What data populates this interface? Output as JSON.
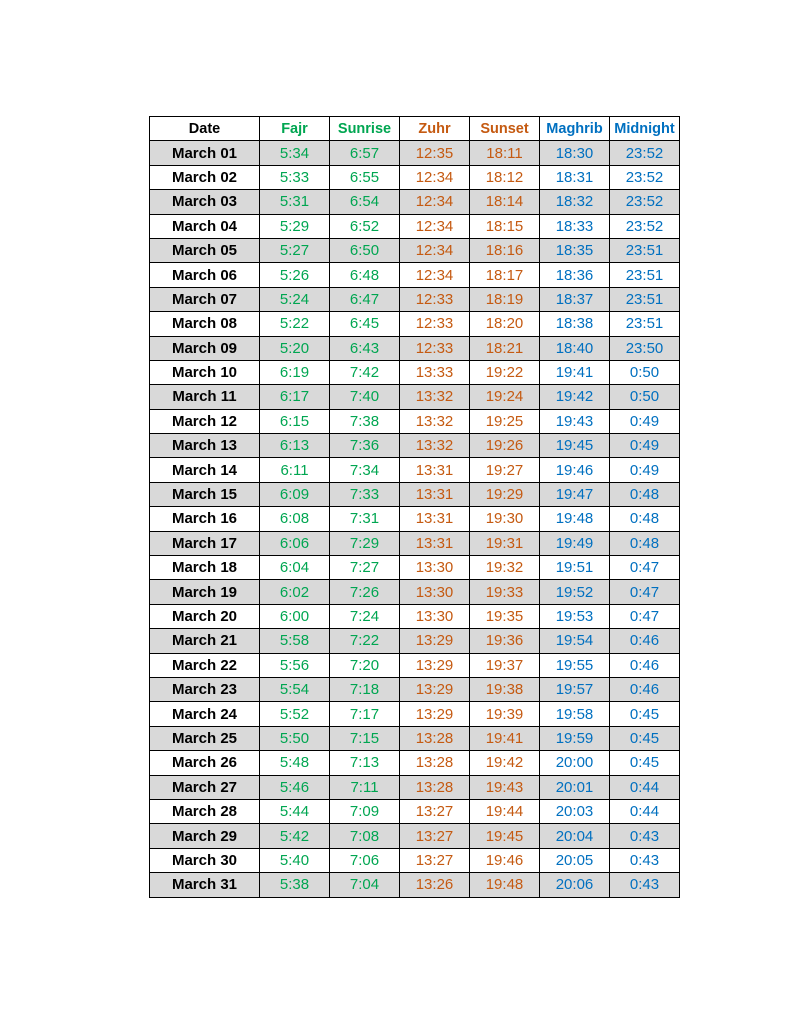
{
  "headers": {
    "date": "Date",
    "fajr": "Fajr",
    "sunrise": "Sunrise",
    "zuhr": "Zuhr",
    "sunset": "Sunset",
    "maghrib": "Maghrib",
    "midnight": "Midnight"
  },
  "colors": {
    "green": "#00a651",
    "orange": "#c55a11",
    "blue": "#0070c0",
    "row_shade": "#d9d9d9"
  },
  "rows": [
    {
      "date": "March 01",
      "fajr": "5:34",
      "sunrise": "6:57",
      "zuhr": "12:35",
      "sunset": "18:11",
      "maghrib": "18:30",
      "midnight": "23:52"
    },
    {
      "date": "March 02",
      "fajr": "5:33",
      "sunrise": "6:55",
      "zuhr": "12:34",
      "sunset": "18:12",
      "maghrib": "18:31",
      "midnight": "23:52"
    },
    {
      "date": "March 03",
      "fajr": "5:31",
      "sunrise": "6:54",
      "zuhr": "12:34",
      "sunset": "18:14",
      "maghrib": "18:32",
      "midnight": "23:52"
    },
    {
      "date": "March 04",
      "fajr": "5:29",
      "sunrise": "6:52",
      "zuhr": "12:34",
      "sunset": "18:15",
      "maghrib": "18:33",
      "midnight": "23:52"
    },
    {
      "date": "March 05",
      "fajr": "5:27",
      "sunrise": "6:50",
      "zuhr": "12:34",
      "sunset": "18:16",
      "maghrib": "18:35",
      "midnight": "23:51"
    },
    {
      "date": "March 06",
      "fajr": "5:26",
      "sunrise": "6:48",
      "zuhr": "12:34",
      "sunset": "18:17",
      "maghrib": "18:36",
      "midnight": "23:51"
    },
    {
      "date": "March 07",
      "fajr": "5:24",
      "sunrise": "6:47",
      "zuhr": "12:33",
      "sunset": "18:19",
      "maghrib": "18:37",
      "midnight": "23:51"
    },
    {
      "date": "March 08",
      "fajr": "5:22",
      "sunrise": "6:45",
      "zuhr": "12:33",
      "sunset": "18:20",
      "maghrib": "18:38",
      "midnight": "23:51"
    },
    {
      "date": "March 09",
      "fajr": "5:20",
      "sunrise": "6:43",
      "zuhr": "12:33",
      "sunset": "18:21",
      "maghrib": "18:40",
      "midnight": "23:50"
    },
    {
      "date": "March 10",
      "fajr": "6:19",
      "sunrise": "7:42",
      "zuhr": "13:33",
      "sunset": "19:22",
      "maghrib": "19:41",
      "midnight": "0:50"
    },
    {
      "date": "March 11",
      "fajr": "6:17",
      "sunrise": "7:40",
      "zuhr": "13:32",
      "sunset": "19:24",
      "maghrib": "19:42",
      "midnight": "0:50"
    },
    {
      "date": "March 12",
      "fajr": "6:15",
      "sunrise": "7:38",
      "zuhr": "13:32",
      "sunset": "19:25",
      "maghrib": "19:43",
      "midnight": "0:49"
    },
    {
      "date": "March 13",
      "fajr": "6:13",
      "sunrise": "7:36",
      "zuhr": "13:32",
      "sunset": "19:26",
      "maghrib": "19:45",
      "midnight": "0:49"
    },
    {
      "date": "March 14",
      "fajr": "6:11",
      "sunrise": "7:34",
      "zuhr": "13:31",
      "sunset": "19:27",
      "maghrib": "19:46",
      "midnight": "0:49"
    },
    {
      "date": "March 15",
      "fajr": "6:09",
      "sunrise": "7:33",
      "zuhr": "13:31",
      "sunset": "19:29",
      "maghrib": "19:47",
      "midnight": "0:48"
    },
    {
      "date": "March 16",
      "fajr": "6:08",
      "sunrise": "7:31",
      "zuhr": "13:31",
      "sunset": "19:30",
      "maghrib": "19:48",
      "midnight": "0:48"
    },
    {
      "date": "March 17",
      "fajr": "6:06",
      "sunrise": "7:29",
      "zuhr": "13:31",
      "sunset": "19:31",
      "maghrib": "19:49",
      "midnight": "0:48"
    },
    {
      "date": "March 18",
      "fajr": "6:04",
      "sunrise": "7:27",
      "zuhr": "13:30",
      "sunset": "19:32",
      "maghrib": "19:51",
      "midnight": "0:47"
    },
    {
      "date": "March 19",
      "fajr": "6:02",
      "sunrise": "7:26",
      "zuhr": "13:30",
      "sunset": "19:33",
      "maghrib": "19:52",
      "midnight": "0:47"
    },
    {
      "date": "March 20",
      "fajr": "6:00",
      "sunrise": "7:24",
      "zuhr": "13:30",
      "sunset": "19:35",
      "maghrib": "19:53",
      "midnight": "0:47"
    },
    {
      "date": "March 21",
      "fajr": "5:58",
      "sunrise": "7:22",
      "zuhr": "13:29",
      "sunset": "19:36",
      "maghrib": "19:54",
      "midnight": "0:46"
    },
    {
      "date": "March 22",
      "fajr": "5:56",
      "sunrise": "7:20",
      "zuhr": "13:29",
      "sunset": "19:37",
      "maghrib": "19:55",
      "midnight": "0:46"
    },
    {
      "date": "March 23",
      "fajr": "5:54",
      "sunrise": "7:18",
      "zuhr": "13:29",
      "sunset": "19:38",
      "maghrib": "19:57",
      "midnight": "0:46"
    },
    {
      "date": "March 24",
      "fajr": "5:52",
      "sunrise": "7:17",
      "zuhr": "13:29",
      "sunset": "19:39",
      "maghrib": "19:58",
      "midnight": "0:45"
    },
    {
      "date": "March 25",
      "fajr": "5:50",
      "sunrise": "7:15",
      "zuhr": "13:28",
      "sunset": "19:41",
      "maghrib": "19:59",
      "midnight": "0:45"
    },
    {
      "date": "March 26",
      "fajr": "5:48",
      "sunrise": "7:13",
      "zuhr": "13:28",
      "sunset": "19:42",
      "maghrib": "20:00",
      "midnight": "0:45"
    },
    {
      "date": "March 27",
      "fajr": "5:46",
      "sunrise": "7:11",
      "zuhr": "13:28",
      "sunset": "19:43",
      "maghrib": "20:01",
      "midnight": "0:44"
    },
    {
      "date": "March 28",
      "fajr": "5:44",
      "sunrise": "7:09",
      "zuhr": "13:27",
      "sunset": "19:44",
      "maghrib": "20:03",
      "midnight": "0:44"
    },
    {
      "date": "March 29",
      "fajr": "5:42",
      "sunrise": "7:08",
      "zuhr": "13:27",
      "sunset": "19:45",
      "maghrib": "20:04",
      "midnight": "0:43"
    },
    {
      "date": "March 30",
      "fajr": "5:40",
      "sunrise": "7:06",
      "zuhr": "13:27",
      "sunset": "19:46",
      "maghrib": "20:05",
      "midnight": "0:43"
    },
    {
      "date": "March 31",
      "fajr": "5:38",
      "sunrise": "7:04",
      "zuhr": "13:26",
      "sunset": "19:48",
      "maghrib": "20:06",
      "midnight": "0:43"
    }
  ]
}
